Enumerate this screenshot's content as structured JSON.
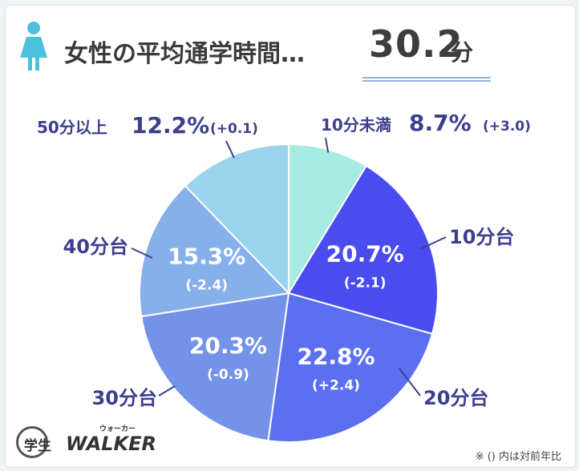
{
  "title": {
    "text": "女性の平均通学時間…",
    "value": "30.2",
    "unit": "分"
  },
  "footnote": "※ () 内は対前年比",
  "logo": {
    "kanji": "学生",
    "brand": "WALKER",
    "kana": "ウォーカー"
  },
  "colors": {
    "accent": "#3c3f8c",
    "underline": "#8fb3dd",
    "person": "#4cc0dd"
  },
  "chart_data": {
    "type": "pie",
    "title": "女性の平均通学時間…30.2分",
    "slices": [
      {
        "label": "10分未満",
        "value": 8.7,
        "value_text": "8.7%",
        "change": "(+3.0)",
        "color": "#a6ece2",
        "label_position": "outside"
      },
      {
        "label": "10分台",
        "value": 20.7,
        "value_text": "20.7%",
        "change": "(-2.1)",
        "color": "#4b4cf0",
        "label_position": "inside"
      },
      {
        "label": "20分台",
        "value": 22.8,
        "value_text": "22.8%",
        "change": "(+2.4)",
        "color": "#5c6ff0",
        "label_position": "inside"
      },
      {
        "label": "30分台",
        "value": 20.3,
        "value_text": "20.3%",
        "change": "(-0.9)",
        "color": "#7493e8",
        "label_position": "inside"
      },
      {
        "label": "40分台",
        "value": 15.3,
        "value_text": "15.3%",
        "change": "(-2.4)",
        "color": "#86b0ea",
        "label_position": "inside"
      },
      {
        "label": "50分以上",
        "value": 12.2,
        "value_text": "12.2%",
        "change": "(+0.1)",
        "color": "#9bd3ec",
        "label_position": "outside"
      }
    ],
    "start_angle_deg": 0,
    "direction": "clockwise",
    "legend": "none"
  }
}
